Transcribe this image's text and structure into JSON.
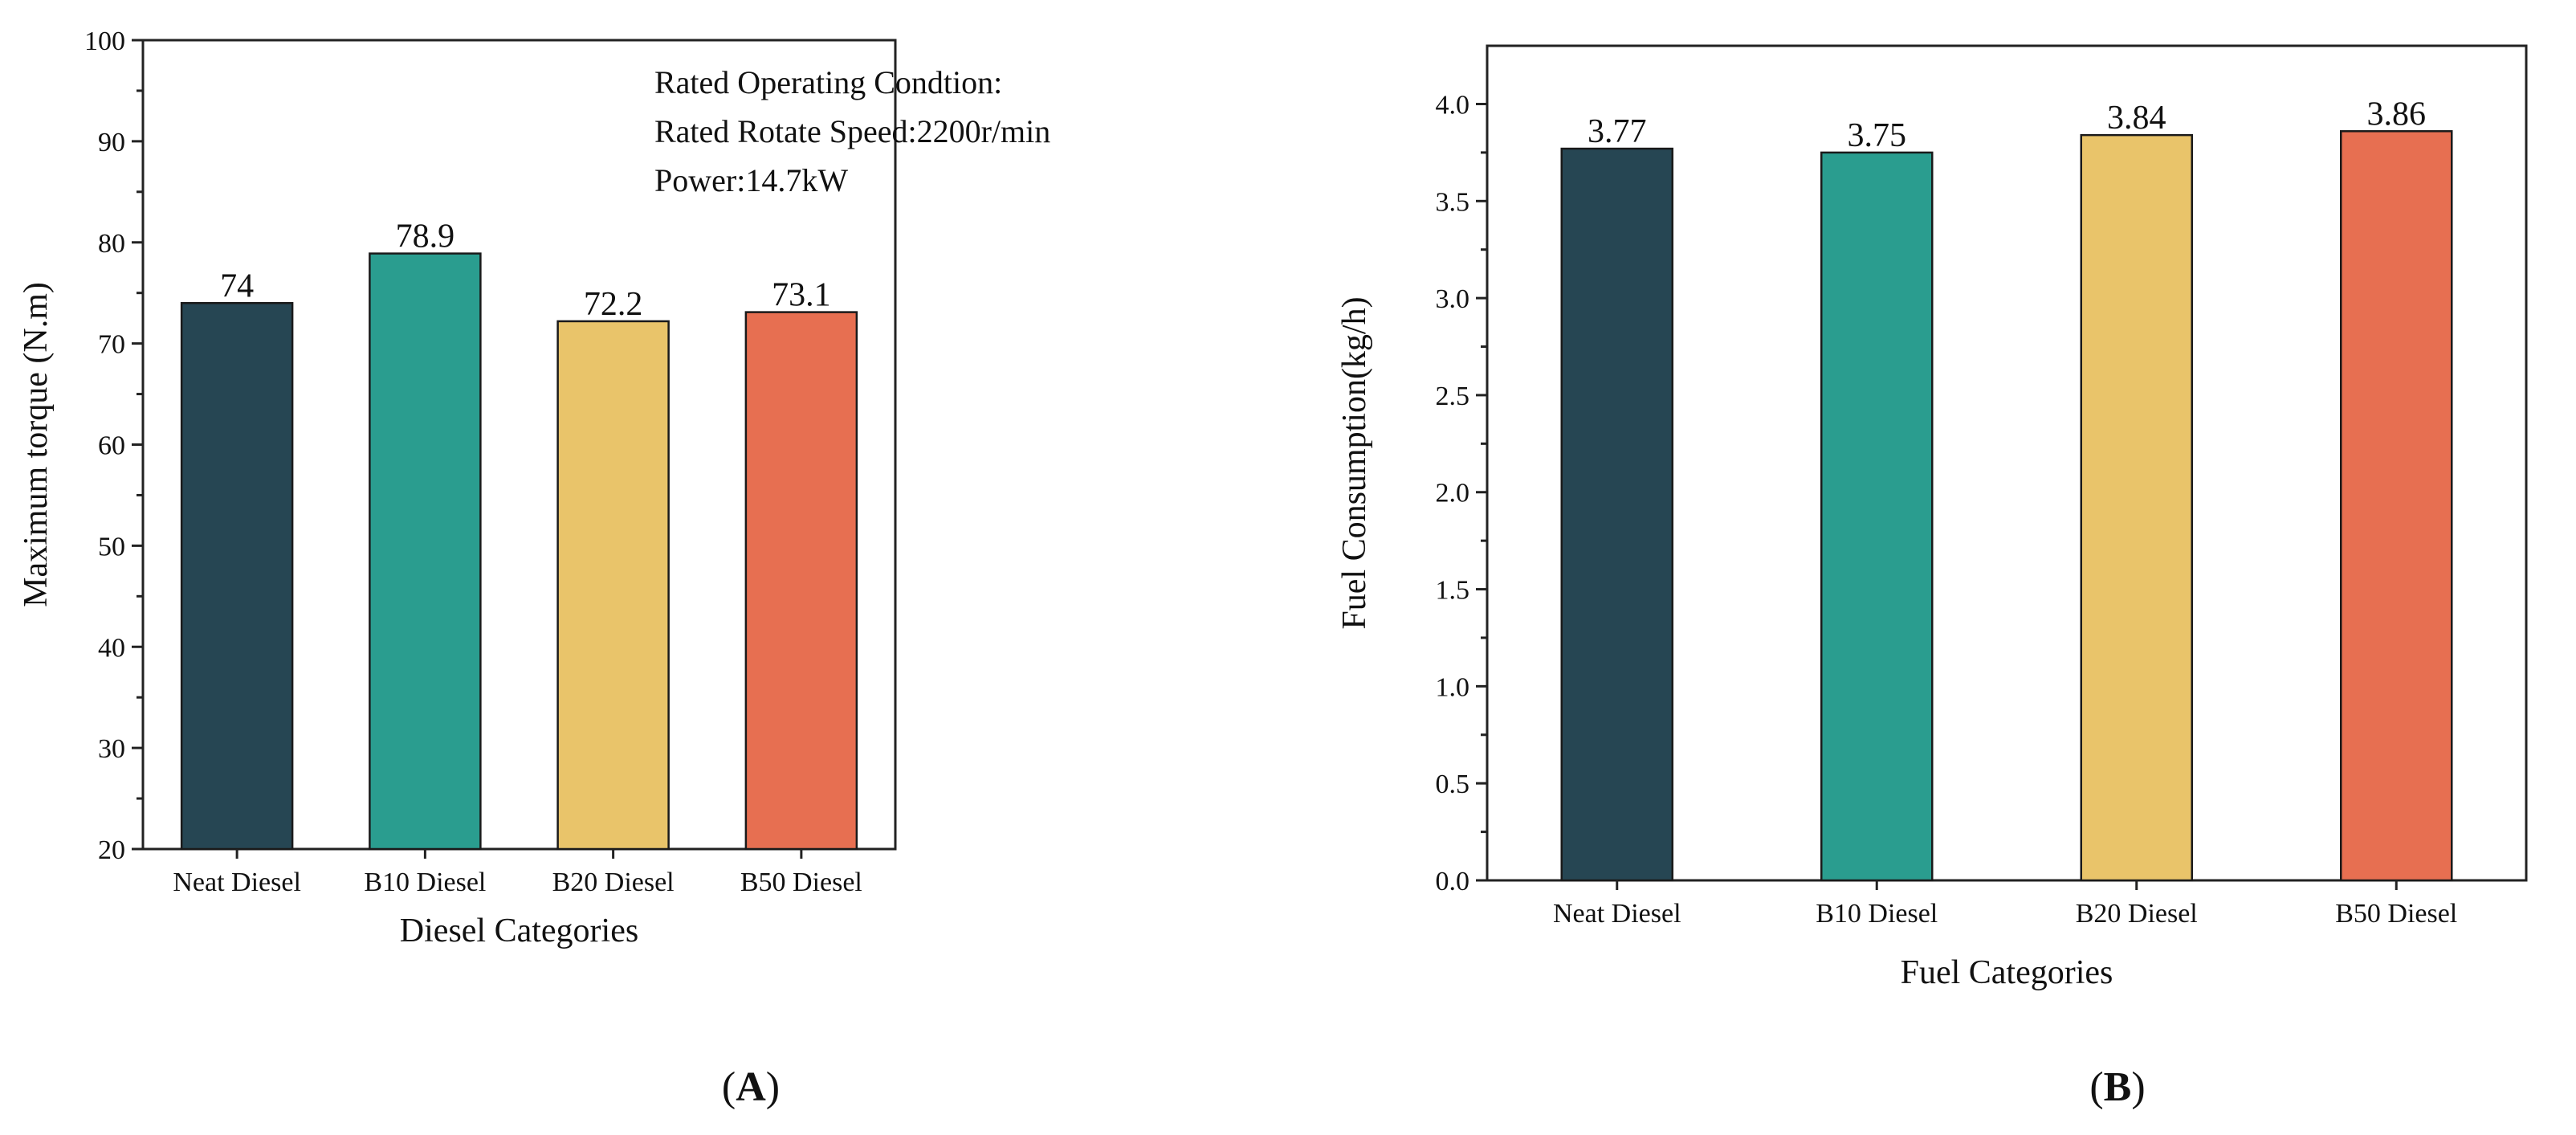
{
  "chart_data": [
    {
      "panel": "A",
      "type": "bar",
      "categories": [
        "Neat Diesel",
        "B10 Diesel",
        "B20 Diesel",
        "B50 Diesel"
      ],
      "values": [
        74,
        78.9,
        72.2,
        73.1
      ],
      "value_labels": [
        "74",
        "78.9",
        "72.2",
        "73.1"
      ],
      "colors": [
        "#264653",
        "#2a9d8f",
        "#e9c46a",
        "#e76f51"
      ],
      "xlabel": "Diesel Categories",
      "ylabel": "Maximum torque (N.m)",
      "ylim": [
        20,
        100
      ],
      "yticks": [
        20,
        30,
        40,
        50,
        60,
        70,
        80,
        90,
        100
      ],
      "ytick_labels": [
        "20",
        "30",
        "40",
        "50",
        "60",
        "70",
        "80",
        "90",
        "100"
      ],
      "annotation": [
        "Rated Operating Condtion:",
        "Rated Rotate Speed:2200r/min",
        "Power:14.7kW"
      ],
      "caption": "A"
    },
    {
      "panel": "B",
      "type": "bar",
      "categories": [
        "Neat Diesel",
        "B10 Diesel",
        "B20 Diesel",
        "B50 Diesel"
      ],
      "values": [
        3.77,
        3.75,
        3.84,
        3.86
      ],
      "value_labels": [
        "3.77",
        "3.75",
        "3.84",
        "3.86"
      ],
      "colors": [
        "#264653",
        "#2a9d8f",
        "#e9c46a",
        "#e76f51"
      ],
      "xlabel": "Fuel Categories",
      "ylabel": "Fuel Consumption(kg/h)",
      "ylim": [
        0,
        4.3
      ],
      "yticks": [
        0,
        0.5,
        1.0,
        1.5,
        2.0,
        2.5,
        3.0,
        3.5,
        4.0
      ],
      "ytick_labels": [
        "0.0",
        "0.5",
        "1.0",
        "1.5",
        "2.0",
        "2.5",
        "3.0",
        "3.5",
        "4.0"
      ],
      "caption": "B"
    }
  ]
}
